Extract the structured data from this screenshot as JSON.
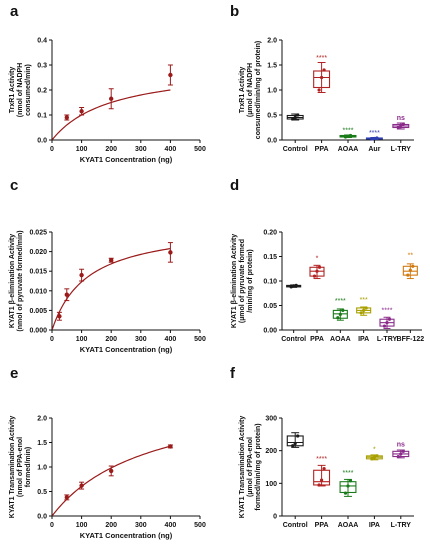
{
  "colors": {
    "curve": "#9b1b1b",
    "axis": "#111111",
    "control": "#1a1a1a",
    "ppa": "#b22222",
    "aoaa": "#1a7a1a",
    "aur": "#2d3fb0",
    "ltry": "#8a2b8a",
    "ipa": "#a8a000",
    "bff": "#d07a10"
  },
  "chart_data": [
    {
      "panel": "a",
      "type": "scatter",
      "fit": "michaelis-menten",
      "xlabel": "KYAT1 Concentration (ng)",
      "ylabel": [
        "TrxR1 Activity",
        "(nmol of NADPH",
        "consumed/min)"
      ],
      "xlim": [
        0,
        500
      ],
      "ylim": [
        0,
        0.4
      ],
      "xticks": [
        0,
        100,
        200,
        300,
        400,
        500
      ],
      "yticks": [
        0.0,
        0.1,
        0.2,
        0.3,
        0.4
      ],
      "ytick_labels": [
        "0.0",
        "0.1",
        "0.2",
        "0.3",
        "0.4"
      ],
      "x": [
        50,
        100,
        200,
        400
      ],
      "y": [
        0.09,
        0.115,
        0.165,
        0.26
      ],
      "err": [
        0.01,
        0.015,
        0.04,
        0.04
      ],
      "fit_vmax": 0.3,
      "fit_km": 200
    },
    {
      "panel": "b",
      "type": "box",
      "ylabel": [
        "TrxR1 Activity",
        "(µmol of NADPH",
        "consumed/min/mg of protein)"
      ],
      "ylim": [
        0,
        2.0
      ],
      "yticks": [
        0.0,
        0.5,
        1.0,
        1.5,
        2.0
      ],
      "ytick_labels": [
        "0.0",
        "0.5",
        "1.0",
        "1.5",
        "2.0"
      ],
      "categories": [
        "Control",
        "PPA",
        "AOAA",
        "Aur",
        "L-TRY"
      ],
      "colorKeys": [
        "control",
        "ppa",
        "aoaa",
        "aur",
        "ltry"
      ],
      "boxes": [
        {
          "min": 0.4,
          "q1": 0.42,
          "median": 0.45,
          "q3": 0.49,
          "max": 0.52,
          "points": [
            0.42,
            0.45,
            0.5
          ]
        },
        {
          "min": 0.95,
          "q1": 1.05,
          "median": 1.25,
          "q3": 1.38,
          "max": 1.55,
          "points": [
            1.0,
            1.25,
            1.4
          ]
        },
        {
          "min": 0.05,
          "q1": 0.06,
          "median": 0.07,
          "q3": 0.09,
          "max": 0.1,
          "points": [
            0.06,
            0.08,
            0.09
          ]
        },
        {
          "min": 0.01,
          "q1": 0.02,
          "median": 0.03,
          "q3": 0.04,
          "max": 0.05,
          "points": [
            0.02,
            0.03,
            0.04
          ]
        },
        {
          "min": 0.22,
          "q1": 0.25,
          "median": 0.28,
          "q3": 0.31,
          "max": 0.34,
          "points": [
            0.25,
            0.29,
            0.32
          ]
        }
      ],
      "sig": [
        "",
        "****",
        "****",
        "****",
        "ns"
      ],
      "sig_y": [
        null,
        1.6,
        0.15,
        0.1,
        0.4
      ]
    },
    {
      "panel": "c",
      "type": "scatter",
      "fit": "michaelis-menten",
      "xlabel": "KYAT1 Concentration (ng)",
      "ylabel": [
        "KYAT1 β-elimination Activity",
        "(nmol of pyruvate formed/min)"
      ],
      "xlim": [
        0,
        500
      ],
      "ylim": [
        0,
        0.025
      ],
      "xticks": [
        0,
        100,
        200,
        300,
        400,
        500
      ],
      "yticks": [
        0.0,
        0.005,
        0.01,
        0.015,
        0.02,
        0.025
      ],
      "ytick_labels": [
        "0.000",
        "0.005",
        "0.010",
        "0.015",
        "0.020",
        "0.025"
      ],
      "x": [
        25,
        50,
        100,
        200,
        400
      ],
      "y": [
        0.0035,
        0.009,
        0.014,
        0.0178,
        0.0198
      ],
      "err": [
        0.001,
        0.0015,
        0.0015,
        0.0005,
        0.0025
      ],
      "fit_vmax": 0.027,
      "fit_km": 120
    },
    {
      "panel": "d",
      "type": "box",
      "ylabel": [
        "KYAT1 β-elimination Activity",
        "(µmol of pyruvate formed",
        "/min/mg of protein)"
      ],
      "ylim": [
        0,
        0.2
      ],
      "yticks": [
        0.0,
        0.05,
        0.1,
        0.15,
        0.2
      ],
      "ytick_labels": [
        "0.00",
        "0.05",
        "0.10",
        "0.15",
        "0.20"
      ],
      "categories": [
        "Control",
        "PPA",
        "AOAA",
        "IPA",
        "L-TRY",
        "BFF-122"
      ],
      "colorKeys": [
        "control",
        "ppa",
        "aoaa",
        "ipa",
        "ltry",
        "bff"
      ],
      "boxes": [
        {
          "min": 0.087,
          "q1": 0.088,
          "median": 0.09,
          "q3": 0.091,
          "max": 0.092,
          "points": [
            0.088,
            0.09,
            0.091
          ]
        },
        {
          "min": 0.105,
          "q1": 0.11,
          "median": 0.12,
          "q3": 0.128,
          "max": 0.132,
          "points": [
            0.11,
            0.12,
            0.128
          ]
        },
        {
          "min": 0.02,
          "q1": 0.024,
          "median": 0.033,
          "q3": 0.04,
          "max": 0.043,
          "points": [
            0.025,
            0.032,
            0.04
          ]
        },
        {
          "min": 0.03,
          "q1": 0.035,
          "median": 0.04,
          "q3": 0.045,
          "max": 0.047,
          "points": [
            0.035,
            0.04,
            0.045
          ]
        },
        {
          "min": 0.003,
          "q1": 0.008,
          "median": 0.015,
          "q3": 0.022,
          "max": 0.026,
          "points": [
            0.008,
            0.015,
            0.022
          ]
        },
        {
          "min": 0.105,
          "q1": 0.112,
          "median": 0.12,
          "q3": 0.13,
          "max": 0.135,
          "points": [
            0.112,
            0.122,
            0.13
          ]
        }
      ],
      "sig": [
        "",
        "*",
        "****",
        "***",
        "****",
        "**"
      ],
      "sig_y": [
        null,
        0.142,
        0.055,
        0.057,
        0.036,
        0.148
      ]
    },
    {
      "panel": "e",
      "type": "scatter",
      "fit": "michaelis-menten",
      "xlabel": "KYAT1 Concentration (ng)",
      "ylabel": [
        "KYAT1 Transamination Activity",
        "(nmol of PPA-enol",
        "formed/min)"
      ],
      "xlim": [
        0,
        500
      ],
      "ylim": [
        0,
        2.0
      ],
      "xticks": [
        0,
        100,
        200,
        300,
        400,
        500
      ],
      "yticks": [
        0.0,
        0.5,
        1.0,
        1.5,
        2.0
      ],
      "ytick_labels": [
        "0.0",
        "0.5",
        "1.0",
        "1.5",
        "2.0"
      ],
      "x": [
        50,
        100,
        200,
        400
      ],
      "y": [
        0.38,
        0.62,
        0.92,
        1.42
      ],
      "err": [
        0.05,
        0.07,
        0.1,
        0.03
      ],
      "fit_vmax": 2.6,
      "fit_km": 330
    },
    {
      "panel": "f",
      "type": "box",
      "ylabel": [
        "KYAT1 Transamination Activity",
        "(µmol of PPA-enol",
        "formed/min/mg of protein)"
      ],
      "ylim": [
        0,
        300
      ],
      "yticks": [
        0,
        100,
        200,
        300
      ],
      "ytick_labels": [
        "0",
        "100",
        "200",
        "300"
      ],
      "categories": [
        "Control",
        "PPA",
        "AOAA",
        "IPA",
        "L-TRY"
      ],
      "colorKeys": [
        "control",
        "ppa",
        "aoaa",
        "ipa",
        "ltry"
      ],
      "boxes": [
        {
          "min": 210,
          "q1": 215,
          "median": 225,
          "q3": 245,
          "max": 255,
          "points": [
            215,
            222,
            245
          ]
        },
        {
          "min": 92,
          "q1": 95,
          "median": 105,
          "q3": 140,
          "max": 155,
          "points": [
            95,
            110,
            145
          ]
        },
        {
          "min": 60,
          "q1": 72,
          "median": 92,
          "q3": 105,
          "max": 112,
          "points": [
            70,
            92,
            108
          ]
        },
        {
          "min": 172,
          "q1": 175,
          "median": 180,
          "q3": 184,
          "max": 187,
          "points": [
            175,
            180,
            184
          ]
        },
        {
          "min": 178,
          "q1": 182,
          "median": 190,
          "q3": 198,
          "max": 202,
          "points": [
            182,
            190,
            198
          ]
        }
      ],
      "sig": [
        "",
        "****",
        "****",
        "*",
        "ns"
      ],
      "sig_y": [
        null,
        168,
        125,
        197,
        213
      ]
    }
  ]
}
